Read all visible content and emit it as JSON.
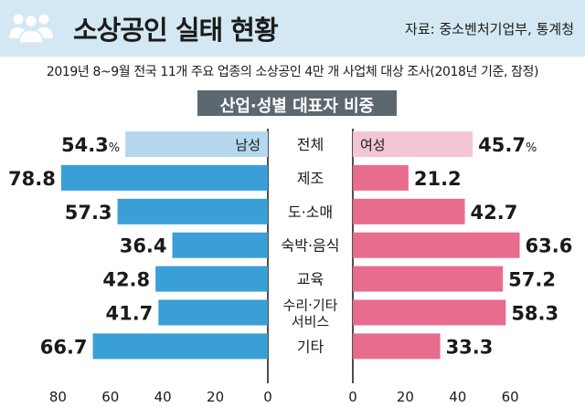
{
  "header": {
    "title": "소상공인 실태 현황",
    "source": "자료: 중소벤처기업부, 통계청",
    "icon": "people-group-icon"
  },
  "subtitle": "2019년 8~9월 전국 11개 주요 업종의 소상공인 4만 개 사업체 대상 조사(2018년 기준, 잠정)",
  "chart_data": {
    "type": "bar",
    "orientation": "horizontal-diverging",
    "title": "산업·성별 대표자 비중",
    "categories": [
      "전체",
      "제조",
      "도·소매",
      "숙박·음식",
      "교육",
      "수리·기타 서비스",
      "기타"
    ],
    "category_lines": [
      [
        "전체"
      ],
      [
        "제조"
      ],
      [
        "도·소매"
      ],
      [
        "숙박·음식"
      ],
      [
        "교육"
      ],
      [
        "수리·기타",
        "서비스"
      ],
      [
        "기타"
      ]
    ],
    "series": [
      {
        "name": "남성",
        "side": "left",
        "values": [
          54.3,
          78.8,
          57.3,
          36.4,
          42.8,
          41.7,
          66.7
        ],
        "labels": [
          "54.3",
          "78.8",
          "57.3",
          "36.4",
          "42.8",
          "41.7",
          "66.7"
        ]
      },
      {
        "name": "여성",
        "side": "right",
        "values": [
          45.7,
          21.2,
          42.7,
          63.6,
          57.2,
          58.3,
          33.3
        ],
        "labels": [
          "45.7",
          "21.2",
          "42.7",
          "63.6",
          "57.2",
          "58.3",
          "33.3"
        ]
      }
    ],
    "total_unit": "%",
    "left_ticks": [
      "80",
      "60",
      "40",
      "20",
      "0"
    ],
    "right_ticks": [
      "0",
      "20",
      "40",
      "60"
    ],
    "xlim": [
      0,
      80
    ],
    "colors": {
      "male": "#3a9fd6",
      "female": "#e86c8e",
      "male_total": "#b5d7ee",
      "female_total": "#f4c5d2"
    }
  }
}
